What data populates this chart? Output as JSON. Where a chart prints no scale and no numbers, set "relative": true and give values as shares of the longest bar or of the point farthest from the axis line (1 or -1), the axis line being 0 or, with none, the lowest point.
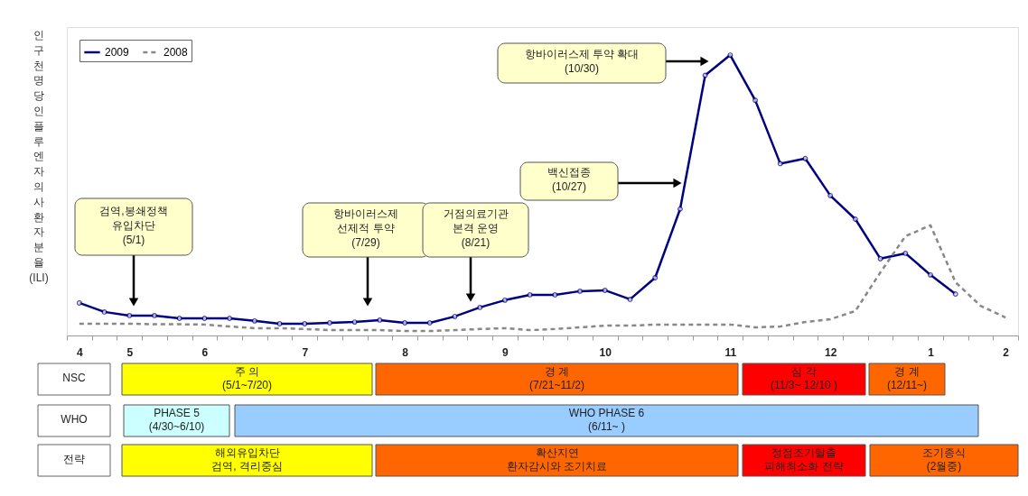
{
  "chart_data": [
    {
      "type": "line",
      "ylabel": "인구 천명당 인플루엔자의사 환자분율(ILI)",
      "relative": true,
      "legend": "top left",
      "categories": [
        "4",
        null,
        "5",
        null,
        null,
        "6",
        null,
        null,
        null,
        "7",
        null,
        null,
        null,
        "8",
        null,
        null,
        null,
        "9",
        null,
        null,
        null,
        "10",
        null,
        null,
        null,
        null,
        "11",
        null,
        null,
        null,
        "12",
        null,
        null,
        null,
        "1",
        null,
        null,
        "2"
      ],
      "series": [
        {
          "name": "2009",
          "color": "#000080",
          "marker": "circle",
          "line_style": "solid",
          "values": [
            0.116,
            0.084,
            0.071,
            0.071,
            0.061,
            0.061,
            0.061,
            0.052,
            0.042,
            0.042,
            0.045,
            0.048,
            0.055,
            0.045,
            0.045,
            0.068,
            0.1,
            0.126,
            0.145,
            0.145,
            0.158,
            0.161,
            0.129,
            0.206,
            0.451,
            0.928,
            1,
            0.839,
            0.613,
            0.631,
            0.499,
            0.415,
            0.274,
            0.293,
            0.216,
            0.148,
            null,
            null
          ]
        },
        {
          "name": "2008",
          "color": "#888888",
          "marker": "none",
          "line_style": "dashed",
          "values": [
            0.042,
            0.042,
            0.042,
            0.04,
            0.04,
            0.039,
            0.032,
            0.026,
            0.026,
            0.023,
            0.019,
            0.019,
            0.019,
            0.016,
            0.016,
            0.019,
            0.023,
            0.026,
            0.019,
            0.023,
            0.029,
            0.035,
            0.035,
            0.039,
            0.039,
            0.039,
            0.039,
            0.029,
            0.032,
            0.048,
            0.058,
            0.087,
            0.225,
            0.354,
            0.393,
            0.19,
            0.106,
            0.064
          ]
        }
      ],
      "annotations": [
        "검역,봉쇄정책\n유입차단\n(5/1)",
        "항바이러스제\n선제적 투약\n(7/29)",
        "거점의료기관\n본격 운영\n(8/21)",
        "백신접종\n(10/27)",
        "항바이러스제 투약 확대\n(10/30)"
      ]
    },
    {
      "type": "other",
      "title": "NSC",
      "annotations": [
        "주 의\n(5/1~7/20)",
        "경 계\n(7/21~11/2)",
        "심 각\n(11/3~ 12/10 )",
        "경 계\n(12/11~)"
      ],
      "colors": [
        "#ffff00",
        "#ff6600",
        "#ff0000",
        "#ff6600"
      ]
    },
    {
      "type": "other",
      "title": "WHO",
      "annotations": [
        "PHASE 5\n(4/30~6/10)",
        "WHO PHASE 6\n(6/11~ )"
      ],
      "colors": [
        "#ccffff",
        "#99ccff"
      ]
    },
    {
      "type": "other",
      "title": "전략",
      "annotations": [
        "해외유입차단\n검역, 격리중심",
        "확산지연\n환자감시와 조기치료",
        "정점조기탈출\n피해최소화 전략",
        "조기종식\n(2월중)"
      ],
      "colors": [
        "#ffff00",
        "#ff6600",
        "#ff0000",
        "#ff6600"
      ]
    }
  ]
}
